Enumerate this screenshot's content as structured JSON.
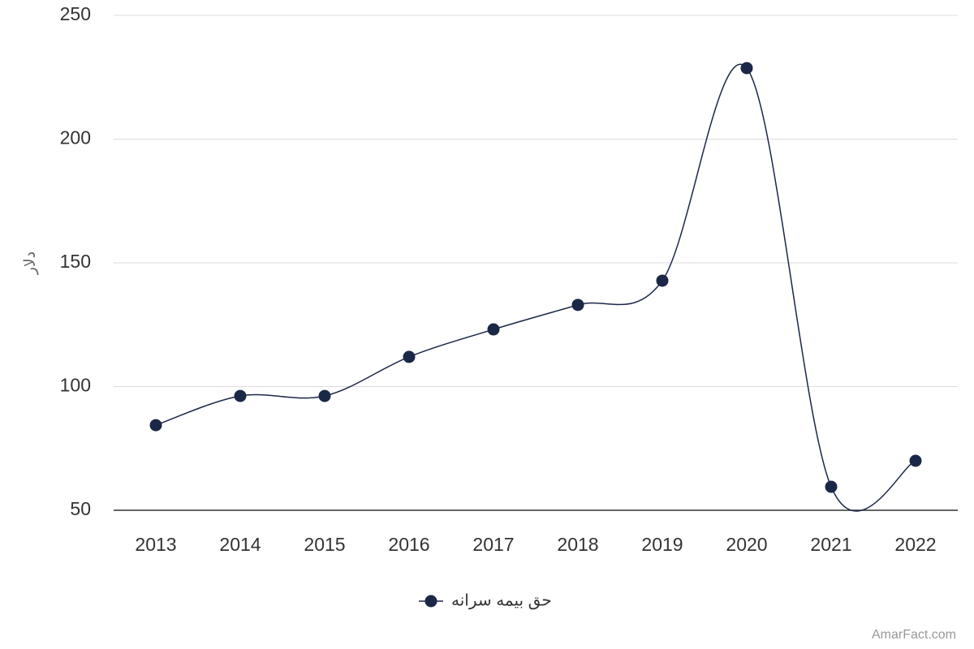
{
  "chart_data": {
    "type": "line",
    "y_label": "دلار",
    "categories": [
      "2013",
      "2014",
      "2015",
      "2016",
      "2017",
      "2018",
      "2019",
      "2020",
      "2021",
      "2022"
    ],
    "series": [
      {
        "name": "حق بیمه سرانه",
        "color": "#1b2747",
        "values": [
          84.4,
          96.2,
          96.2,
          112,
          123.1,
          133,
          142.8,
          228.7,
          59.5,
          70
        ]
      }
    ],
    "ylim": [
      50,
      250
    ],
    "yticks": [
      50,
      100,
      150,
      200,
      250
    ],
    "grid": true,
    "smooth": true,
    "credits": "AmarFact.com"
  }
}
